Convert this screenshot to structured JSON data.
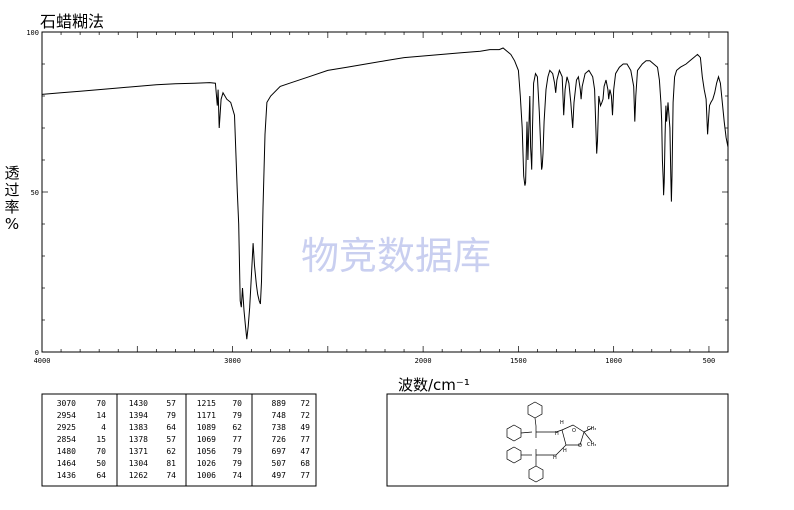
{
  "header": {
    "title": "石蜡糊法"
  },
  "watermark": {
    "text": "物竞数据库"
  },
  "chart_data": {
    "type": "line",
    "title": "石蜡糊法",
    "xlabel": "波数/cm⁻¹",
    "ylabel": "透过率%",
    "xlim": [
      4000,
      400
    ],
    "ylim": [
      0,
      100
    ],
    "x_reversed": true,
    "grid": false,
    "x_ticks": [
      {
        "value": 4000,
        "label": "4000"
      },
      {
        "value": 3000,
        "label": "3000"
      },
      {
        "value": 2000,
        "label": "2000"
      },
      {
        "value": 1500,
        "label": "1500"
      },
      {
        "value": 1000,
        "label": "1000"
      },
      {
        "value": 500,
        "label": "500"
      }
    ],
    "y_ticks": [
      {
        "value": 100,
        "label": "100"
      },
      {
        "value": 50,
        "label": "50"
      },
      {
        "value": 0,
        "label": "0"
      }
    ],
    "spectrum": [
      [
        4000,
        80.5
      ],
      [
        3900,
        81
      ],
      [
        3800,
        81.5
      ],
      [
        3700,
        82
      ],
      [
        3600,
        82.5
      ],
      [
        3500,
        83
      ],
      [
        3400,
        83.5
      ],
      [
        3300,
        83.8
      ],
      [
        3200,
        84
      ],
      [
        3120,
        84.2
      ],
      [
        3090,
        84
      ],
      [
        3080,
        77
      ],
      [
        3076,
        82
      ],
      [
        3070,
        70
      ],
      [
        3060,
        79
      ],
      [
        3050,
        81
      ],
      [
        3030,
        79
      ],
      [
        3010,
        78
      ],
      [
        2990,
        74
      ],
      [
        2975,
        50
      ],
      [
        2968,
        40
      ],
      [
        2960,
        16
      ],
      [
        2954,
        14
      ],
      [
        2948,
        20
      ],
      [
        2940,
        13
      ],
      [
        2932,
        8
      ],
      [
        2925,
        4
      ],
      [
        2918,
        8
      ],
      [
        2910,
        14
      ],
      [
        2900,
        25
      ],
      [
        2892,
        34
      ],
      [
        2885,
        27
      ],
      [
        2875,
        21
      ],
      [
        2868,
        18
      ],
      [
        2860,
        16
      ],
      [
        2854,
        15
      ],
      [
        2848,
        22
      ],
      [
        2840,
        45
      ],
      [
        2830,
        68
      ],
      [
        2820,
        78
      ],
      [
        2800,
        80
      ],
      [
        2750,
        83
      ],
      [
        2700,
        84
      ],
      [
        2600,
        86
      ],
      [
        2500,
        88
      ],
      [
        2400,
        89
      ],
      [
        2300,
        90
      ],
      [
        2200,
        91
      ],
      [
        2100,
        92
      ],
      [
        2000,
        92.5
      ],
      [
        1900,
        93
      ],
      [
        1800,
        93.5
      ],
      [
        1700,
        94
      ],
      [
        1650,
        94.5
      ],
      [
        1600,
        94.5
      ],
      [
        1580,
        95
      ],
      [
        1560,
        94
      ],
      [
        1540,
        93
      ],
      [
        1520,
        91
      ],
      [
        1500,
        88
      ],
      [
        1490,
        80
      ],
      [
        1480,
        70
      ],
      [
        1472,
        55
      ],
      [
        1466,
        52
      ],
      [
        1462,
        53
      ],
      [
        1455,
        72
      ],
      [
        1450,
        60
      ],
      [
        1440,
        80
      ],
      [
        1436,
        64
      ],
      [
        1432,
        60
      ],
      [
        1430,
        57
      ],
      [
        1426,
        70
      ],
      [
        1420,
        84
      ],
      [
        1410,
        87
      ],
      [
        1400,
        86
      ],
      [
        1394,
        79
      ],
      [
        1390,
        75
      ],
      [
        1383,
        64
      ],
      [
        1378,
        57
      ],
      [
        1375,
        58
      ],
      [
        1371,
        62
      ],
      [
        1365,
        72
      ],
      [
        1355,
        82
      ],
      [
        1345,
        86
      ],
      [
        1335,
        88
      ],
      [
        1320,
        87
      ],
      [
        1310,
        84
      ],
      [
        1304,
        81
      ],
      [
        1298,
        85
      ],
      [
        1285,
        88
      ],
      [
        1270,
        86
      ],
      [
        1262,
        74
      ],
      [
        1255,
        82
      ],
      [
        1245,
        86
      ],
      [
        1235,
        84
      ],
      [
        1225,
        78
      ],
      [
        1215,
        70
      ],
      [
        1208,
        78
      ],
      [
        1195,
        85
      ],
      [
        1185,
        86
      ],
      [
        1175,
        82
      ],
      [
        1171,
        79
      ],
      [
        1165,
        83
      ],
      [
        1150,
        87
      ],
      [
        1130,
        88
      ],
      [
        1110,
        86
      ],
      [
        1100,
        82
      ],
      [
        1089,
        62
      ],
      [
        1085,
        66
      ],
      [
        1078,
        80
      ],
      [
        1069,
        77
      ],
      [
        1062,
        78
      ],
      [
        1056,
        79
      ],
      [
        1050,
        83
      ],
      [
        1040,
        85
      ],
      [
        1030,
        82
      ],
      [
        1026,
        79
      ],
      [
        1020,
        82
      ],
      [
        1012,
        80
      ],
      [
        1006,
        74
      ],
      [
        1000,
        82
      ],
      [
        990,
        87
      ],
      [
        970,
        89
      ],
      [
        950,
        90
      ],
      [
        930,
        90
      ],
      [
        910,
        88
      ],
      [
        895,
        83
      ],
      [
        889,
        72
      ],
      [
        884,
        80
      ],
      [
        875,
        88
      ],
      [
        850,
        90
      ],
      [
        830,
        91
      ],
      [
        810,
        91
      ],
      [
        790,
        90
      ],
      [
        770,
        89
      ],
      [
        760,
        85
      ],
      [
        752,
        78
      ],
      [
        748,
        72
      ],
      [
        744,
        60
      ],
      [
        740,
        54
      ],
      [
        738,
        49
      ],
      [
        735,
        53
      ],
      [
        730,
        68
      ],
      [
        726,
        77
      ],
      [
        722,
        72
      ],
      [
        715,
        78
      ],
      [
        705,
        70
      ],
      [
        700,
        55
      ],
      [
        697,
        47
      ],
      [
        694,
        55
      ],
      [
        688,
        78
      ],
      [
        680,
        86
      ],
      [
        670,
        88
      ],
      [
        650,
        89
      ],
      [
        620,
        90
      ],
      [
        600,
        91
      ],
      [
        580,
        92
      ],
      [
        560,
        93
      ],
      [
        545,
        92
      ],
      [
        535,
        86
      ],
      [
        525,
        82
      ],
      [
        515,
        79
      ],
      [
        507,
        68
      ],
      [
        502,
        73
      ],
      [
        497,
        77
      ],
      [
        490,
        78
      ],
      [
        480,
        79
      ],
      [
        470,
        81
      ],
      [
        460,
        84
      ],
      [
        450,
        86
      ],
      [
        440,
        84
      ],
      [
        430,
        78
      ],
      [
        420,
        72
      ],
      [
        410,
        67
      ],
      [
        400,
        64
      ]
    ],
    "peak_table": [
      [
        {
          "x": "3070",
          "y": "70"
        },
        {
          "x": "1430",
          "y": "57"
        },
        {
          "x": "1215",
          "y": "70"
        },
        {
          "x": "889",
          "y": "72"
        }
      ],
      [
        {
          "x": "2954",
          "y": "14"
        },
        {
          "x": "1394",
          "y": "79"
        },
        {
          "x": "1171",
          "y": "79"
        },
        {
          "x": "748",
          "y": "72"
        }
      ],
      [
        {
          "x": "2925",
          "y": "4"
        },
        {
          "x": "1383",
          "y": "64"
        },
        {
          "x": "1089",
          "y": "62"
        },
        {
          "x": "738",
          "y": "49"
        }
      ],
      [
        {
          "x": "2854",
          "y": "15"
        },
        {
          "x": "1378",
          "y": "57"
        },
        {
          "x": "1069",
          "y": "77"
        },
        {
          "x": "726",
          "y": "77"
        }
      ],
      [
        {
          "x": "1480",
          "y": "70"
        },
        {
          "x": "1371",
          "y": "62"
        },
        {
          "x": "1056",
          "y": "79"
        },
        {
          "x": "697",
          "y": "47"
        }
      ],
      [
        {
          "x": "1464",
          "y": "50"
        },
        {
          "x": "1304",
          "y": "81"
        },
        {
          "x": "1026",
          "y": "79"
        },
        {
          "x": "507",
          "y": "68"
        }
      ],
      [
        {
          "x": "1436",
          "y": "64"
        },
        {
          "x": "1262",
          "y": "74"
        },
        {
          "x": "1006",
          "y": "74"
        },
        {
          "x": "497",
          "y": "77"
        }
      ]
    ]
  },
  "structure": {
    "atom_labels": [
      "H",
      "H",
      "H",
      "H",
      "O",
      "O",
      "CH₃",
      "CH₃"
    ]
  }
}
